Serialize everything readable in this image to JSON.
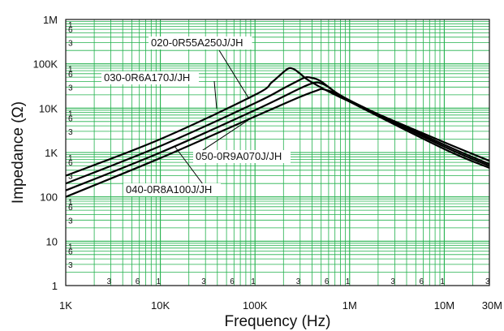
{
  "chart_data": {
    "type": "line",
    "xlabel": "Frequency (Hz)",
    "ylabel": "Impedance (Ω)",
    "x_scale": "log",
    "y_scale": "log",
    "xlim": [
      1000,
      30000000
    ],
    "ylim": [
      1,
      1000000
    ],
    "grid": true,
    "grid_color": "#22b14c",
    "line_color": "#000000",
    "x_tick_labels": [
      "1K",
      "10K",
      "100K",
      "1M",
      "10M",
      "30M"
    ],
    "x_tick_values": [
      1000,
      10000,
      100000,
      1000000,
      10000000,
      30000000
    ],
    "y_tick_labels": [
      "1",
      "10",
      "100",
      "1K",
      "10K",
      "100K",
      "1M"
    ],
    "y_tick_values": [
      1,
      10,
      100,
      1000,
      10000,
      100000,
      1000000
    ],
    "x_minor_labels": [
      "3",
      "6",
      "1",
      "3",
      "6",
      "1",
      "3",
      "6",
      "1",
      "3",
      "6",
      "1",
      "3"
    ],
    "y_minor_labels": [
      "1",
      "6",
      "3",
      "1",
      "6",
      "3",
      "1",
      "6",
      "3",
      "1",
      "6",
      "3",
      "1",
      "6",
      "3",
      "1",
      "6",
      "3"
    ],
    "series": [
      {
        "name": "020-0R55A250J/JH",
        "x": [
          1000,
          10000,
          100000,
          150000,
          200000,
          230000,
          260000,
          300000,
          400000,
          1000000,
          10000000,
          30000000
        ],
        "y": [
          300,
          2000,
          20000,
          38000,
          65000,
          80000,
          75000,
          60000,
          38000,
          14000,
          1700,
          650
        ]
      },
      {
        "name": "030-0R6A170J/JH",
        "x": [
          1000,
          10000,
          100000,
          200000,
          300000,
          350000,
          400000,
          500000,
          1000000,
          10000000,
          30000000
        ],
        "y": [
          200,
          1400,
          13000,
          28000,
          44000,
          50000,
          48000,
          40000,
          15000,
          1500,
          550
        ]
      },
      {
        "name": "050-0R9A070J/JH",
        "x": [
          1000,
          10000,
          100000,
          300000,
          400000,
          450000,
          500000,
          600000,
          1000000,
          10000000,
          30000000
        ],
        "y": [
          140,
          1000,
          9000,
          28000,
          36000,
          38000,
          36000,
          30000,
          15000,
          1350,
          500
        ]
      },
      {
        "name": "040-0R8A100J/JH",
        "x": [
          1000,
          10000,
          100000,
          300000,
          450000,
          500000,
          550000,
          700000,
          1000000,
          10000000,
          30000000
        ],
        "y": [
          100,
          750,
          6500,
          18000,
          25000,
          27000,
          26000,
          22000,
          14000,
          1200,
          450
        ]
      }
    ]
  }
}
